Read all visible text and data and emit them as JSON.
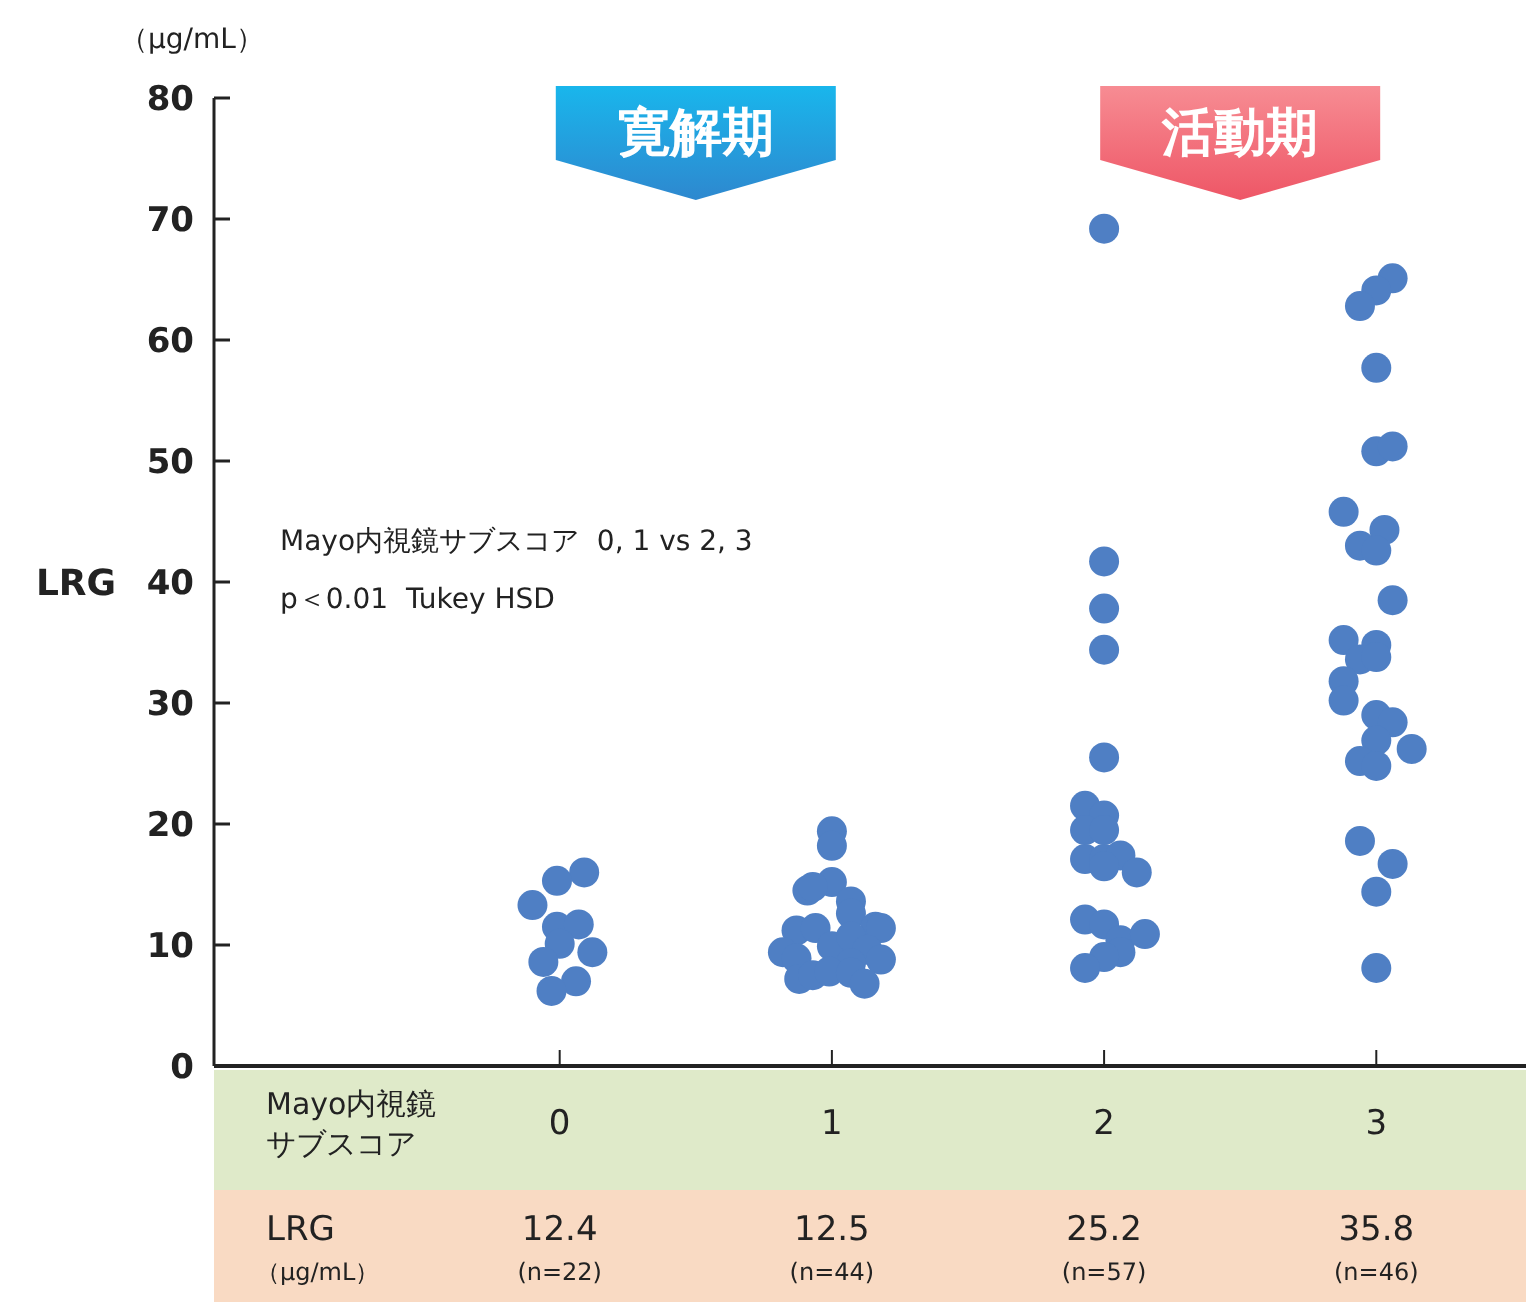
{
  "chart_data": {
    "type": "scatter",
    "ylabel": "LRG",
    "xlabel": "Mayo内視鏡サブスコア",
    "marker": "circle",
    "xlim": [
      -1.27,
      3.55
    ],
    "xticks": [
      0,
      1,
      2,
      3
    ],
    "ylim": [
      0,
      80
    ],
    "yticks": [
      0,
      10,
      20,
      30,
      40,
      50,
      60,
      70,
      80
    ],
    "annotations": [
      "（μg/mL）",
      "寛解期",
      "活動期",
      "Mayo内視鏡サブスコア  0, 1 vs 2, 3",
      "p＜0.01  Tukey HSD",
      "LRG",
      "（μg/mL）",
      "12.4",
      "(n=22)",
      "12.5",
      "(n=44)",
      "25.2",
      "(n=57)",
      "35.8",
      "(n=46)"
    ],
    "series": [
      {
        "color": "#4f7fc4",
        "x": [
          0.09,
          -0.01,
          -0.1,
          -0.01,
          0.07,
          0,
          0.12,
          -0.06,
          0.06,
          -0.03,
          1.0,
          1.0,
          1.0,
          0.91,
          0.93,
          1.07,
          1.07,
          0.87,
          0.94,
          1.16,
          1.18,
          0.82,
          0.87,
          1.0,
          1.07,
          1.13,
          1.18,
          1.07,
          0.88,
          0.93,
          0.99,
          1.07,
          1.12,
          2.0,
          2.0,
          2.0,
          2.0,
          2.0,
          1.93,
          2.0,
          1.93,
          2.0,
          1.93,
          2.0,
          2.06,
          2.0,
          2.12,
          1.93,
          2.0,
          2.06,
          2.15,
          2.06,
          2.0,
          1.93,
          3.06,
          3.0,
          2.94,
          3.0,
          3.0,
          3.06,
          2.88,
          3.03,
          2.94,
          3.0,
          3.06,
          2.88,
          3.0,
          2.94,
          3.0,
          2.88,
          2.88,
          3.0,
          3.06,
          3.0,
          3.13,
          2.94,
          3.0,
          2.94,
          3.06,
          3.0,
          3.0
        ],
        "values": [
          16.0,
          15.3,
          13.3,
          11.5,
          11.7,
          10.1,
          9.4,
          8.6,
          7.0,
          6.2,
          19.4,
          18.2,
          15.2,
          14.5,
          14.8,
          13.6,
          12.6,
          11.2,
          11.4,
          11.5,
          11.4,
          9.4,
          8.9,
          9.9,
          10.7,
          9.6,
          8.8,
          8.5,
          7.2,
          7.5,
          7.8,
          7.7,
          6.8,
          69.2,
          41.7,
          37.8,
          34.4,
          25.5,
          21.5,
          20.7,
          19.5,
          19.5,
          17.1,
          17.1,
          17.4,
          16.5,
          16.0,
          12.1,
          11.7,
          10.4,
          10.9,
          9.4,
          9.0,
          8.1,
          65.1,
          64.1,
          62.8,
          57.7,
          50.8,
          51.2,
          45.8,
          44.3,
          43.0,
          42.6,
          38.5,
          35.2,
          34.8,
          33.6,
          33.8,
          31.8,
          30.2,
          29.0,
          28.4,
          26.9,
          26.2,
          25.2,
          24.8,
          18.6,
          16.7,
          14.4,
          8.1
        ]
      }
    ]
  }
}
